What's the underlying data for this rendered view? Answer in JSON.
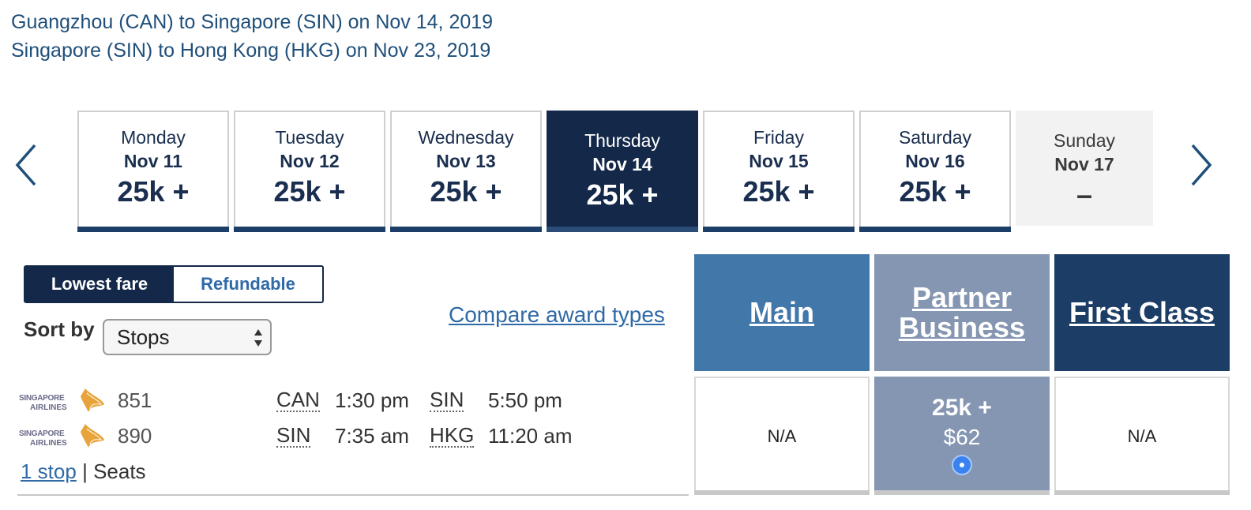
{
  "route": {
    "leg1": "Guangzhou (CAN) to Singapore (SIN) on Nov 14, 2019",
    "leg2": "Singapore (SIN) to Hong Kong (HKG) on Nov 23, 2019"
  },
  "days": [
    {
      "name": "Monday",
      "date": "Nov 11",
      "price": "25k +"
    },
    {
      "name": "Tuesday",
      "date": "Nov 12",
      "price": "25k +"
    },
    {
      "name": "Wednesday",
      "date": "Nov 13",
      "price": "25k +"
    },
    {
      "name": "Thursday",
      "date": "Nov 14",
      "price": "25k +"
    },
    {
      "name": "Friday",
      "date": "Nov 15",
      "price": "25k +"
    },
    {
      "name": "Saturday",
      "date": "Nov 16",
      "price": "25k +"
    },
    {
      "name": "Sunday",
      "date": "Nov 17",
      "price": "–"
    }
  ],
  "fare_toggle": {
    "lowest": "Lowest fare",
    "refundable": "Refundable"
  },
  "sort": {
    "label": "Sort by",
    "value": "Stops"
  },
  "compare_link": "Compare award types",
  "cabins": {
    "main": "Main",
    "partner_line1": "Partner",
    "partner_line2": "Business",
    "first": "First Class"
  },
  "flights": [
    {
      "airline": "SINGAPORE AIRLINES",
      "number": "851",
      "from": "CAN",
      "dep": "1:30 pm",
      "to": "SIN",
      "arr": "5:50 pm"
    },
    {
      "airline": "SINGAPORE AIRLINES",
      "number": "890",
      "from": "SIN",
      "dep": "7:35 am",
      "to": "HKG",
      "arr": "11:20 am"
    }
  ],
  "stops": {
    "link": "1 stop",
    "separator": "|",
    "seats": "Seats"
  },
  "fares": {
    "main": "N/A",
    "partner_price": "25k +",
    "partner_fee": "$62",
    "first": "N/A"
  },
  "colors": {
    "navy": "#14284a",
    "main_blue": "#4277aa",
    "partner_grey_blue": "#8496b1",
    "first_navy": "#1b3d66",
    "link_blue": "#2f6aa6"
  }
}
